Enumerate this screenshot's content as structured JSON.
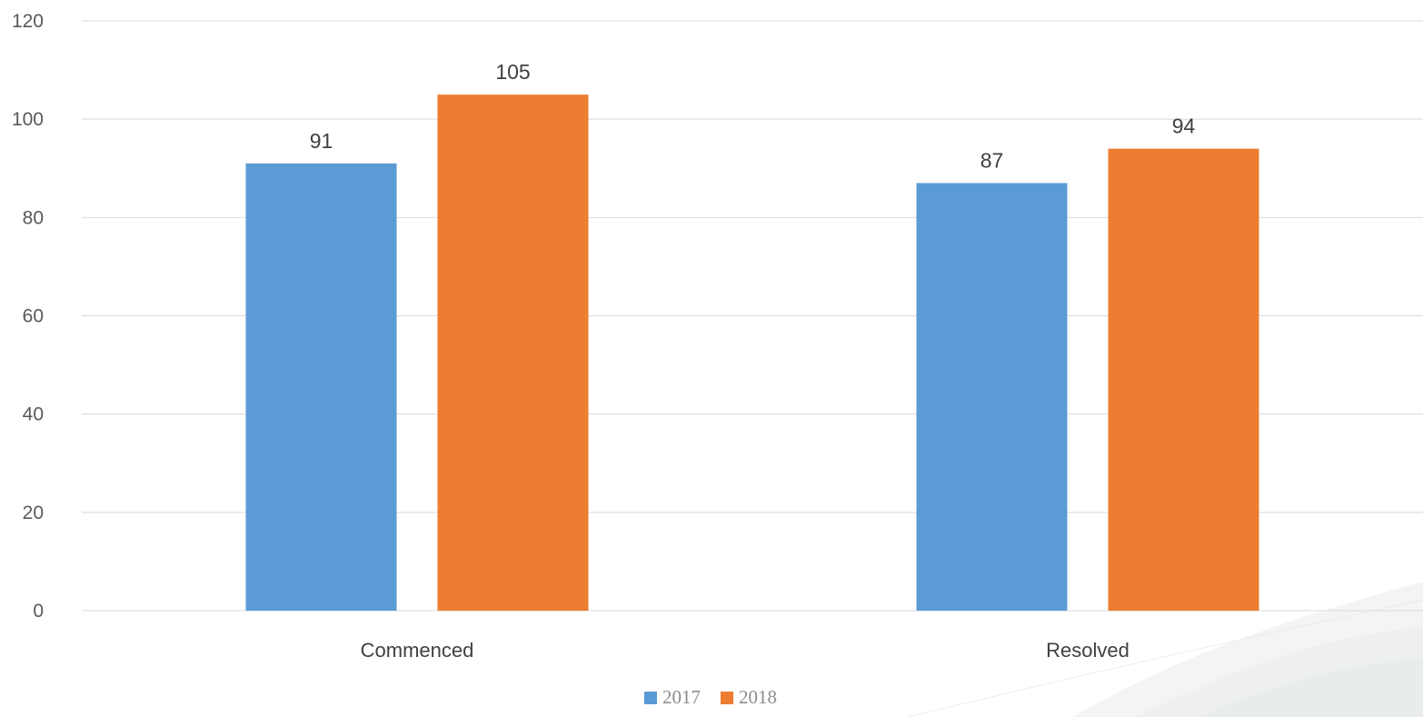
{
  "chart_data": {
    "type": "bar",
    "categories": [
      "Commenced",
      "Resolved"
    ],
    "series": [
      {
        "name": "2017",
        "values": [
          91,
          87
        ],
        "color": "#5b9bd5"
      },
      {
        "name": "2018",
        "values": [
          105,
          94
        ],
        "color": "#ed7d31"
      }
    ],
    "title": "",
    "xlabel": "",
    "ylabel": "",
    "ylim": [
      0,
      120
    ],
    "yticks": [
      0,
      20,
      40,
      60,
      80,
      100,
      120
    ],
    "grid": true,
    "legend": "bottom",
    "data_labels": true
  },
  "decoration": {
    "background_swoosh_color": "#dfe3de"
  }
}
